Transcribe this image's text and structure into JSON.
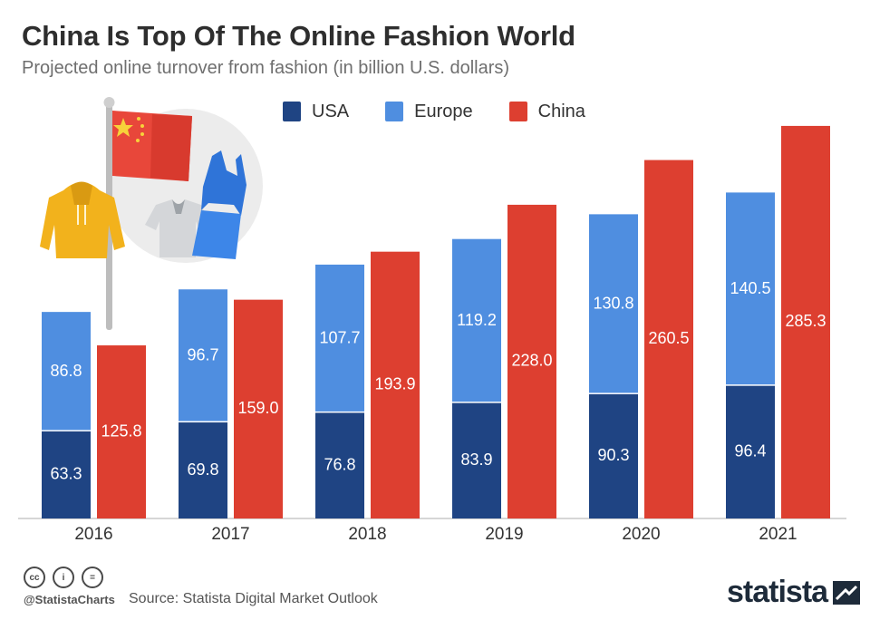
{
  "header": {
    "title": "China Is Top Of The Online Fashion World",
    "subtitle": "Projected online turnover from fashion (in billion U.S. dollars)"
  },
  "chart_data": {
    "type": "bar",
    "stacked_group": "USA and Europe are stacked; China is a separate bar",
    "categories": [
      "2016",
      "2017",
      "2018",
      "2019",
      "2020",
      "2021"
    ],
    "series": [
      {
        "name": "USA",
        "color": "#1f4483",
        "values": [
          63.3,
          69.8,
          76.8,
          83.9,
          90.3,
          96.4
        ]
      },
      {
        "name": "Europe",
        "color": "#4f8ee0",
        "values": [
          86.8,
          96.7,
          107.7,
          119.2,
          130.8,
          140.5
        ]
      },
      {
        "name": "China",
        "color": "#dd3f30",
        "values": [
          125.8,
          159.0,
          193.9,
          228.0,
          260.5,
          285.3
        ]
      }
    ],
    "value_labels": {
      "USA": [
        "63.3",
        "69.8",
        "76.8",
        "83.9",
        "90.3",
        "96.4"
      ],
      "Europe": [
        "86.8",
        "96.7",
        "107.7",
        "119.2",
        "130.8",
        "140.5"
      ],
      "China": [
        "125.8",
        "159.0",
        "193.9",
        "228.0",
        "260.5",
        "285.3"
      ]
    },
    "legend_position": "top",
    "grid": false
  },
  "illustration": {
    "icons": [
      "china-flag-icon",
      "hoodie-icon",
      "tshirt-icon",
      "dress-icon"
    ]
  },
  "footer": {
    "cc_icons": [
      "cc-icon",
      "by-icon",
      "nd-icon"
    ],
    "cc_glyphs": [
      "cc",
      "i",
      "="
    ],
    "handle": "@StatistaCharts",
    "source": "Source: Statista Digital Market Outlook",
    "brand": "statista"
  }
}
